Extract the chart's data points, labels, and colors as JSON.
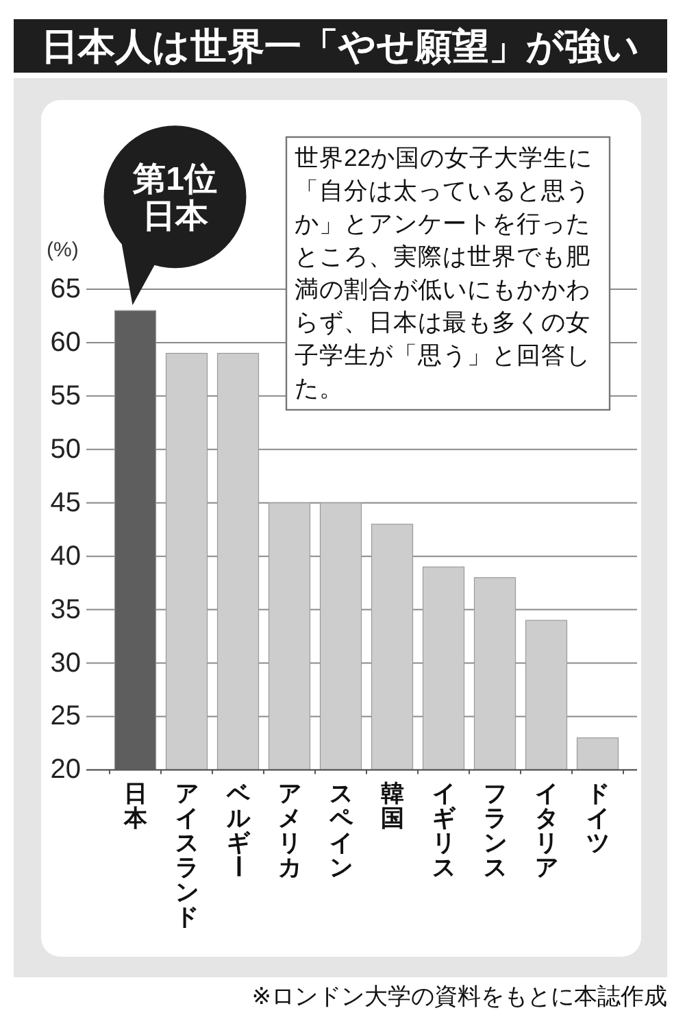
{
  "chart_data": {
    "type": "bar",
    "title": "日本人は世界一「やせ願望」が強い",
    "ylabel": "(%)",
    "categories": [
      "日本",
      "アイスランド",
      "ベルギー",
      "アメリカ",
      "スペイン",
      "韓国",
      "イギリス",
      "フランス",
      "イタリア",
      "ドイツ"
    ],
    "values": [
      63,
      59,
      59,
      45,
      45,
      43,
      39,
      38,
      34,
      23
    ],
    "colors": [
      "#5e5e5e",
      "#cdcdcd",
      "#cdcdcd",
      "#cdcdcd",
      "#cdcdcd",
      "#cdcdcd",
      "#cdcdcd",
      "#cdcdcd",
      "#cdcdcd",
      "#cdcdcd"
    ],
    "ylim": [
      20,
      65
    ],
    "yticks": [
      20,
      25,
      30,
      35,
      40,
      45,
      50,
      55,
      60,
      65
    ],
    "grid": "y",
    "annotations": [
      {
        "text": "第1位日本",
        "x": "日本",
        "y": 63
      },
      "世界22か国の女子大学生に「自分は太っていると思うか」とアンケートを行ったところ、実際は世界でも肥満の割合が低いにもかかわらず、日本は最も多くの女子学生が「思う」と回答した。",
      "※ロンドン大学の資料をもとに本誌作成"
    ]
  }
}
